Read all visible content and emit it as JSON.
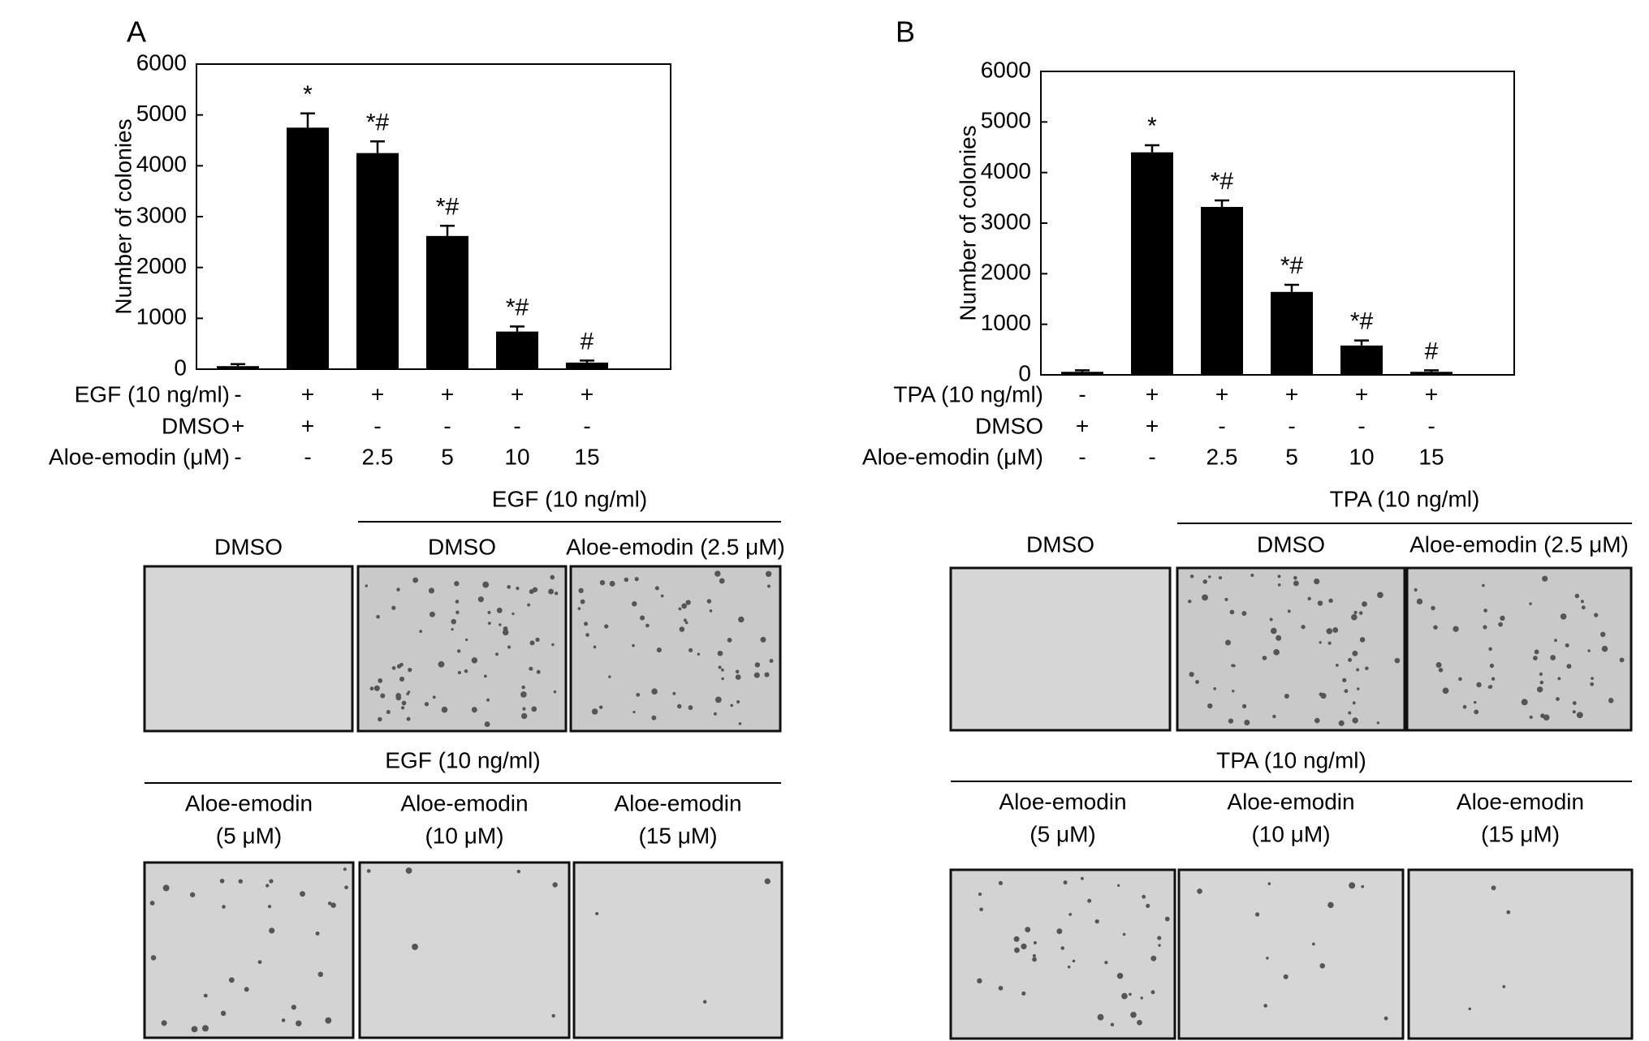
{
  "chart_data": [
    {
      "type": "bar",
      "panel": "A",
      "ylabel": "Number of colonies",
      "ylim": [
        0,
        6000
      ],
      "yticks": [
        "6000",
        "5000",
        "4000",
        "3000",
        "2000",
        "1000",
        "0"
      ],
      "values": [
        60,
        4750,
        4250,
        2620,
        740,
        130
      ],
      "errors": [
        40,
        280,
        230,
        200,
        100,
        40
      ],
      "annotations": [
        "",
        "*",
        "*#",
        "*#",
        "*#",
        "#"
      ],
      "treatment_rows": [
        {
          "label": "EGF (10 ng/ml)",
          "cells": [
            "-",
            "+",
            "+",
            "+",
            "+",
            "+"
          ]
        },
        {
          "label": "DMSO",
          "cells": [
            "+",
            "+",
            "-",
            "-",
            "-",
            "-"
          ]
        },
        {
          "label": "Aloe-emodin (μM)",
          "cells": [
            "-",
            "-",
            "2.5",
            "5",
            "10",
            "15"
          ]
        }
      ],
      "image_rows": [
        {
          "header": "EGF (10 ng/ml)",
          "images": [
            {
              "label": [
                "DMSO"
              ],
              "dots": 0,
              "seed": 11
            },
            {
              "label": [
                "DMSO"
              ],
              "dots": 75,
              "seed": 12
            },
            {
              "label": [
                "Aloe-emodin (2.5 μM)"
              ],
              "dots": 60,
              "seed": 13
            }
          ]
        },
        {
          "header": "EGF (10 ng/ml)",
          "images": [
            {
              "label": [
                "Aloe-emodin",
                "(5 μM)"
              ],
              "dots": 30,
              "seed": 14
            },
            {
              "label": [
                "Aloe-emodin",
                "(10 μM)"
              ],
              "dots": 6,
              "seed": 15
            },
            {
              "label": [
                "Aloe-emodin",
                "(15 μM)"
              ],
              "dots": 3,
              "seed": 16
            }
          ]
        }
      ]
    },
    {
      "type": "bar",
      "panel": "B",
      "ylabel": "Number of colonies",
      "ylim": [
        0,
        6000
      ],
      "yticks": [
        "6000",
        "5000",
        "4000",
        "3000",
        "2000",
        "1000",
        "0"
      ],
      "values": [
        60,
        4400,
        3320,
        1640,
        580,
        60
      ],
      "errors": [
        30,
        140,
        130,
        140,
        100,
        30
      ],
      "annotations": [
        "",
        "*",
        "*#",
        "*#",
        "*#",
        "#"
      ],
      "treatment_rows": [
        {
          "label": "TPA (10 ng/ml)",
          "cells": [
            "-",
            "+",
            "+",
            "+",
            "+",
            "+"
          ]
        },
        {
          "label": "DMSO",
          "cells": [
            "+",
            "+",
            "-",
            "-",
            "-",
            "-"
          ]
        },
        {
          "label": "Aloe-emodin (μM)",
          "cells": [
            "-",
            "-",
            "2.5",
            "5",
            "10",
            "15"
          ]
        }
      ],
      "image_rows": [
        {
          "header": "TPA (10 ng/ml)",
          "images": [
            {
              "label": [
                "DMSO"
              ],
              "dots": 0,
              "seed": 21
            },
            {
              "label": [
                "DMSO"
              ],
              "dots": 65,
              "seed": 22
            },
            {
              "label": [
                "Aloe-emodin (2.5 μM)"
              ],
              "dots": 55,
              "seed": 23
            }
          ]
        },
        {
          "header": "TPA (10 ng/ml)",
          "images": [
            {
              "label": [
                "Aloe-emodin",
                "(5 μM)"
              ],
              "dots": 40,
              "seed": 24
            },
            {
              "label": [
                "Aloe-emodin",
                "(10 μM)"
              ],
              "dots": 12,
              "seed": 25
            },
            {
              "label": [
                "Aloe-emodin",
                "(15 μM)"
              ],
              "dots": 4,
              "seed": 26
            }
          ]
        }
      ]
    }
  ]
}
